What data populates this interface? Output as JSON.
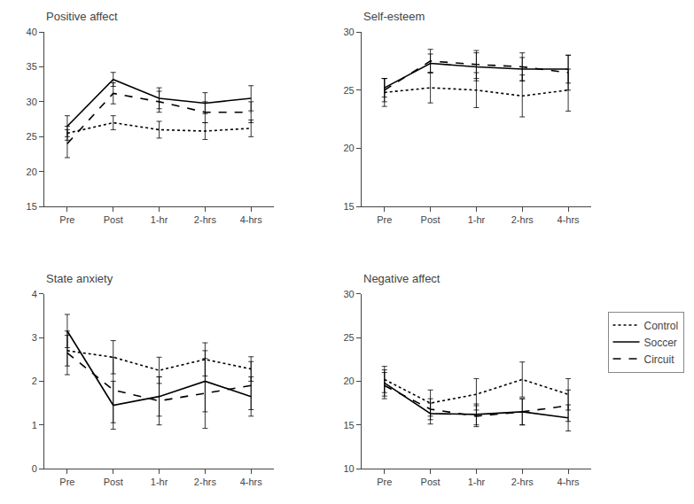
{
  "chart_data": [
    {
      "type": "line",
      "title": "Positive affect",
      "categories": [
        "Pre",
        "Post",
        "1-hr",
        "2-hrs",
        "4-hrs"
      ],
      "ylim": [
        15,
        40
      ],
      "yticks": [
        15,
        20,
        25,
        30,
        35,
        40
      ],
      "grid": false,
      "series": [
        {
          "name": "Control",
          "color": "#000000",
          "line_style": "dotted",
          "values": [
            25.5,
            27.0,
            26.0,
            25.8,
            26.2
          ],
          "error": [
            1.0,
            1.0,
            1.2,
            1.2,
            1.2
          ]
        },
        {
          "name": "Soccer",
          "color": "#000000",
          "line_style": "solid",
          "values": [
            26.5,
            33.2,
            30.5,
            29.8,
            30.5
          ],
          "error": [
            1.5,
            1.0,
            1.5,
            1.5,
            1.8
          ]
        },
        {
          "name": "Circuit",
          "color": "#000000",
          "line_style": "dashed",
          "values": [
            24.0,
            31.2,
            30.0,
            28.5,
            28.5
          ],
          "error": [
            2.0,
            1.5,
            1.5,
            1.5,
            1.5
          ]
        }
      ]
    },
    {
      "type": "line",
      "title": "Self-esteem",
      "categories": [
        "Pre",
        "Post",
        "1-hr",
        "2-hrs",
        "4-hrs"
      ],
      "ylim": [
        15,
        30
      ],
      "yticks": [
        15,
        20,
        25,
        30
      ],
      "grid": false,
      "series": [
        {
          "name": "Control",
          "color": "#000000",
          "line_style": "dotted",
          "values": [
            24.8,
            25.2,
            25.0,
            24.5,
            25.0
          ],
          "error": [
            1.2,
            1.3,
            1.5,
            1.8,
            1.8
          ]
        },
        {
          "name": "Soccer",
          "color": "#000000",
          "line_style": "solid",
          "values": [
            25.2,
            27.3,
            27.0,
            26.8,
            26.8
          ],
          "error": [
            0.8,
            0.8,
            1.2,
            1.0,
            1.2
          ]
        },
        {
          "name": "Circuit",
          "color": "#000000",
          "line_style": "dashed",
          "values": [
            25.0,
            27.5,
            27.2,
            27.0,
            26.5
          ],
          "error": [
            1.0,
            1.0,
            1.2,
            1.2,
            1.5
          ]
        }
      ]
    },
    {
      "type": "line",
      "title": "State anxiety",
      "categories": [
        "Pre",
        "Post",
        "1-hr",
        "2-hrs",
        "4-hrs"
      ],
      "ylim": [
        0,
        4
      ],
      "yticks": [
        0,
        1,
        2,
        3,
        4
      ],
      "grid": false,
      "series": [
        {
          "name": "Control",
          "color": "#000000",
          "line_style": "dotted",
          "values": [
            2.7,
            2.55,
            2.25,
            2.5,
            2.28
          ],
          "error": [
            0.35,
            0.38,
            0.3,
            0.38,
            0.28
          ]
        },
        {
          "name": "Soccer",
          "color": "#000000",
          "line_style": "solid",
          "values": [
            3.15,
            1.45,
            1.65,
            2.0,
            1.65
          ],
          "error": [
            0.38,
            0.55,
            0.45,
            0.7,
            0.45
          ]
        },
        {
          "name": "Circuit",
          "color": "#000000",
          "line_style": "dashed",
          "values": [
            2.65,
            1.8,
            1.55,
            1.72,
            1.9
          ],
          "error": [
            0.5,
            0.75,
            0.55,
            0.8,
            0.55
          ]
        }
      ]
    },
    {
      "type": "line",
      "title": "Negative affect",
      "categories": [
        "Pre",
        "Post",
        "1-hr",
        "2-hrs",
        "4-hrs"
      ],
      "ylim": [
        10,
        30
      ],
      "yticks": [
        10,
        15,
        20,
        25,
        30
      ],
      "grid": false,
      "legend": "right",
      "series": [
        {
          "name": "Control",
          "color": "#000000",
          "line_style": "dotted",
          "values": [
            20.2,
            17.5,
            18.5,
            20.2,
            18.5
          ],
          "error": [
            1.5,
            1.5,
            1.8,
            2.0,
            1.8
          ]
        },
        {
          "name": "Soccer",
          "color": "#000000",
          "line_style": "solid",
          "values": [
            19.8,
            16.3,
            16.2,
            16.5,
            15.8
          ],
          "error": [
            1.5,
            1.2,
            1.2,
            1.5,
            1.5
          ]
        },
        {
          "name": "Circuit",
          "color": "#000000",
          "line_style": "dashed",
          "values": [
            19.5,
            16.8,
            16.0,
            16.5,
            17.2
          ],
          "error": [
            1.5,
            1.2,
            1.2,
            1.5,
            1.8
          ]
        }
      ]
    }
  ]
}
